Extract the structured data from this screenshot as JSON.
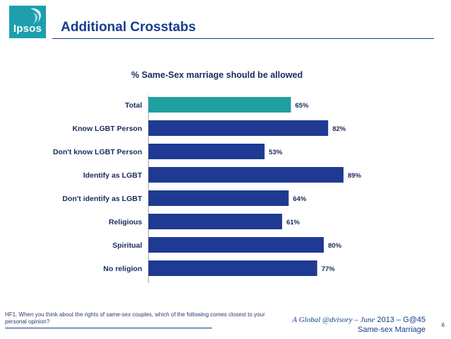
{
  "header": {
    "logo_text": "Ipsos",
    "title": "Additional Crosstabs"
  },
  "colors": {
    "brand": "#163d8e",
    "logo": "#1d9fae",
    "bar_total": "#1f9fa0",
    "bar": "#1e3a93"
  },
  "chart_data": {
    "type": "bar",
    "orientation": "horizontal",
    "title": "% Same-Sex marriage should be allowed",
    "categories": [
      "Total",
      "Know LGBT Person",
      "Don't know LGBT Person",
      "Identify as LGBT",
      "Don't identify as LGBT",
      "Religious",
      "Spiritual",
      "No religion"
    ],
    "values": [
      65,
      82,
      53,
      89,
      64,
      61,
      80,
      77
    ],
    "value_labels": [
      "65%",
      "82%",
      "53%",
      "89%",
      "64%",
      "61%",
      "80%",
      "77%"
    ],
    "xlim": [
      0,
      100
    ],
    "xlabel": "",
    "ylabel": "",
    "grid": false,
    "legend": "none"
  },
  "footer": {
    "question": "HF1. When you think about the rights of same-sex couples, which of the following comes closest to your personal opinion?",
    "brand_line1_italic": "A Global @dvisory – June",
    "brand_line1_rest": " 2013 – G@45",
    "brand_line2": "Same-sex Marriage",
    "page": "6"
  }
}
